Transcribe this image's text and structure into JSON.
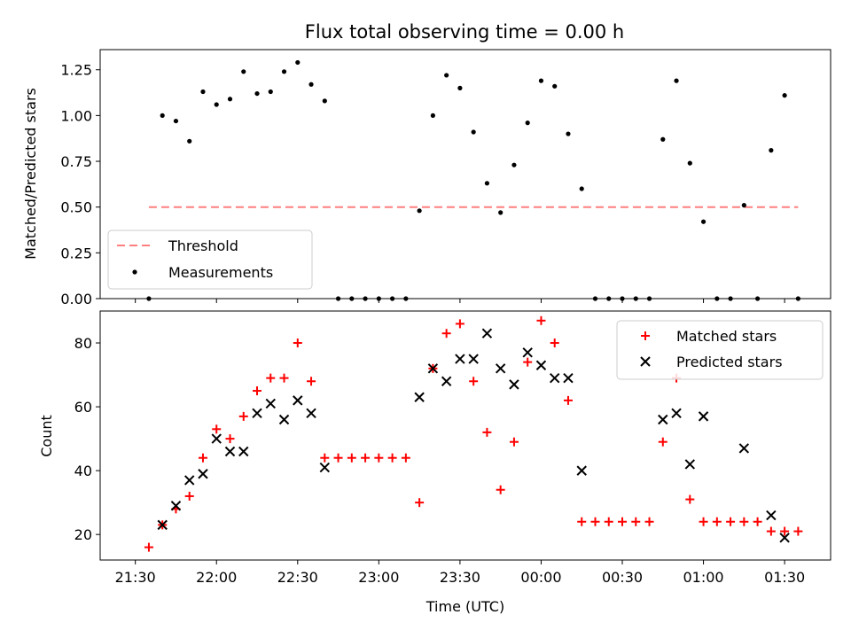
{
  "chart_data": [
    {
      "type": "scatter",
      "title": "Flux total observing time = 0.00 h",
      "xlabel": "",
      "ylabel": "Matched/Predicted stars",
      "xlim": [
        "21:17",
        "01:47"
      ],
      "ylim": [
        0,
        1.36
      ],
      "yticks": [
        "0.00",
        "0.25",
        "0.50",
        "0.75",
        "1.00",
        "1.25"
      ],
      "legend": {
        "position": "lower-left",
        "entries": [
          "Threshold",
          "Measurements"
        ]
      },
      "threshold": {
        "name": "Threshold",
        "color": "#ff7f7f",
        "from": "21:35",
        "to": "01:35",
        "y": 0.5
      },
      "series": [
        {
          "name": "Measurements",
          "color": "#000000",
          "marker": "dot",
          "points": [
            [
              "21:35",
              0.0
            ],
            [
              "21:40",
              1.0
            ],
            [
              "21:45",
              0.97
            ],
            [
              "21:50",
              0.86
            ],
            [
              "21:55",
              1.13
            ],
            [
              "22:00",
              1.06
            ],
            [
              "22:05",
              1.09
            ],
            [
              "22:10",
              1.24
            ],
            [
              "22:15",
              1.12
            ],
            [
              "22:20",
              1.13
            ],
            [
              "22:25",
              1.24
            ],
            [
              "22:30",
              1.29
            ],
            [
              "22:35",
              1.17
            ],
            [
              "22:40",
              1.08
            ],
            [
              "22:45",
              0.0
            ],
            [
              "22:50",
              0.0
            ],
            [
              "22:55",
              0.0
            ],
            [
              "23:00",
              0.0
            ],
            [
              "23:05",
              0.0
            ],
            [
              "23:10",
              0.0
            ],
            [
              "23:15",
              0.48
            ],
            [
              "23:20",
              1.0
            ],
            [
              "23:25",
              1.22
            ],
            [
              "23:30",
              1.15
            ],
            [
              "23:35",
              0.91
            ],
            [
              "23:40",
              0.63
            ],
            [
              "23:45",
              0.47
            ],
            [
              "23:50",
              0.73
            ],
            [
              "23:55",
              0.96
            ],
            [
              "00:00",
              1.19
            ],
            [
              "00:05",
              1.16
            ],
            [
              "00:10",
              0.9
            ],
            [
              "00:15",
              0.6
            ],
            [
              "00:20",
              0.0
            ],
            [
              "00:25",
              0.0
            ],
            [
              "00:30",
              0.0
            ],
            [
              "00:35",
              0.0
            ],
            [
              "00:40",
              0.0
            ],
            [
              "00:45",
              0.87
            ],
            [
              "00:50",
              1.19
            ],
            [
              "00:55",
              0.74
            ],
            [
              "01:00",
              0.42
            ],
            [
              "01:05",
              0.0
            ],
            [
              "01:10",
              0.0
            ],
            [
              "01:15",
              0.51
            ],
            [
              "01:20",
              0.0
            ],
            [
              "01:25",
              0.81
            ],
            [
              "01:30",
              1.11
            ],
            [
              "01:35",
              0.0
            ]
          ]
        }
      ]
    },
    {
      "type": "scatter",
      "title": "",
      "xlabel": "Time (UTC)",
      "ylabel": "Count",
      "xlim": [
        "21:17",
        "01:47"
      ],
      "ylim": [
        12,
        90
      ],
      "yticks": [
        "20",
        "40",
        "60",
        "80"
      ],
      "xticks": [
        "21:30",
        "22:00",
        "22:30",
        "23:00",
        "23:30",
        "00:00",
        "00:30",
        "01:00",
        "01:30"
      ],
      "legend": {
        "position": "upper-right",
        "entries": [
          "Matched stars",
          "Predicted stars"
        ]
      },
      "series": [
        {
          "name": "Matched stars",
          "color": "#ff0000",
          "marker": "plus",
          "points": [
            [
              "21:35",
              16
            ],
            [
              "21:40",
              23
            ],
            [
              "21:45",
              28
            ],
            [
              "21:50",
              32
            ],
            [
              "21:55",
              44
            ],
            [
              "22:00",
              53
            ],
            [
              "22:05",
              50
            ],
            [
              "22:10",
              57
            ],
            [
              "22:15",
              65
            ],
            [
              "22:20",
              69
            ],
            [
              "22:25",
              69
            ],
            [
              "22:30",
              80
            ],
            [
              "22:35",
              68
            ],
            [
              "22:40",
              44
            ],
            [
              "22:45",
              44
            ],
            [
              "22:50",
              44
            ],
            [
              "22:55",
              44
            ],
            [
              "23:00",
              44
            ],
            [
              "23:05",
              44
            ],
            [
              "23:10",
              44
            ],
            [
              "23:15",
              30
            ],
            [
              "23:20",
              72
            ],
            [
              "23:25",
              83
            ],
            [
              "23:30",
              86
            ],
            [
              "23:35",
              68
            ],
            [
              "23:40",
              52
            ],
            [
              "23:45",
              34
            ],
            [
              "23:50",
              49
            ],
            [
              "23:55",
              74
            ],
            [
              "00:00",
              87
            ],
            [
              "00:05",
              80
            ],
            [
              "00:10",
              62
            ],
            [
              "00:15",
              24
            ],
            [
              "00:20",
              24
            ],
            [
              "00:25",
              24
            ],
            [
              "00:30",
              24
            ],
            [
              "00:35",
              24
            ],
            [
              "00:40",
              24
            ],
            [
              "00:45",
              49
            ],
            [
              "00:50",
              69
            ],
            [
              "00:55",
              31
            ],
            [
              "01:00",
              24
            ],
            [
              "01:05",
              24
            ],
            [
              "01:10",
              24
            ],
            [
              "01:15",
              24
            ],
            [
              "01:20",
              24
            ],
            [
              "01:25",
              21
            ],
            [
              "01:30",
              21
            ],
            [
              "01:35",
              21
            ]
          ]
        },
        {
          "name": "Predicted stars",
          "color": "#000000",
          "marker": "x",
          "points": [
            [
              "21:40",
              23
            ],
            [
              "21:45",
              29
            ],
            [
              "21:50",
              37
            ],
            [
              "21:55",
              39
            ],
            [
              "22:00",
              50
            ],
            [
              "22:05",
              46
            ],
            [
              "22:10",
              46
            ],
            [
              "22:15",
              58
            ],
            [
              "22:20",
              61
            ],
            [
              "22:25",
              56
            ],
            [
              "22:30",
              62
            ],
            [
              "22:35",
              58
            ],
            [
              "22:40",
              41
            ],
            [
              "23:15",
              63
            ],
            [
              "23:20",
              72
            ],
            [
              "23:25",
              68
            ],
            [
              "23:30",
              75
            ],
            [
              "23:35",
              75
            ],
            [
              "23:40",
              83
            ],
            [
              "23:45",
              72
            ],
            [
              "23:50",
              67
            ],
            [
              "23:55",
              77
            ],
            [
              "00:00",
              73
            ],
            [
              "00:05",
              69
            ],
            [
              "00:10",
              69
            ],
            [
              "00:15",
              40
            ],
            [
              "00:45",
              56
            ],
            [
              "00:50",
              58
            ],
            [
              "00:55",
              42
            ],
            [
              "01:00",
              57
            ],
            [
              "01:15",
              47
            ],
            [
              "01:25",
              26
            ],
            [
              "01:30",
              19
            ]
          ]
        }
      ]
    }
  ]
}
